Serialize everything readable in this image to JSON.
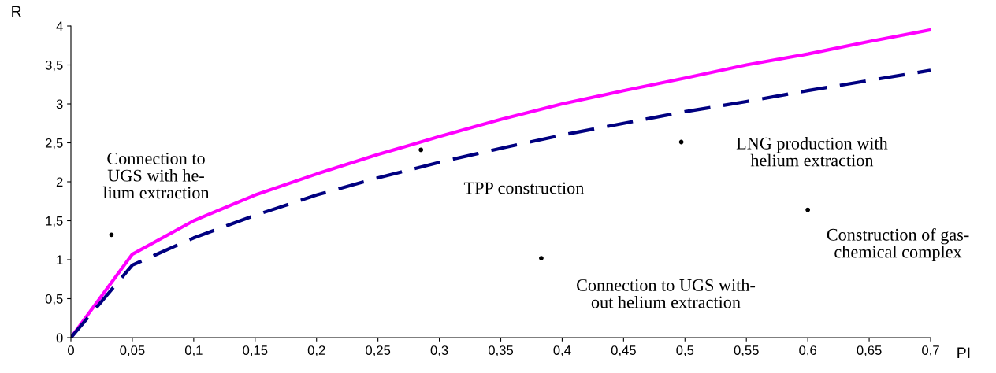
{
  "chart_data": {
    "type": "line",
    "xlabel": "PI",
    "ylabel": "R",
    "xlim": [
      0,
      0.7
    ],
    "ylim": [
      0,
      4
    ],
    "xticks": [
      0,
      {
        "value": 0.05,
        "label": "0,05"
      },
      {
        "value": 0.1,
        "label": "0,1"
      },
      {
        "value": 0.15,
        "label": "0,15"
      },
      {
        "value": 0.2,
        "label": "0,2"
      },
      {
        "value": 0.25,
        "label": "0,25"
      },
      {
        "value": 0.3,
        "label": "0,3"
      },
      {
        "value": 0.35,
        "label": "0,35"
      },
      {
        "value": 0.4,
        "label": "0,4"
      },
      {
        "value": 0.45,
        "label": "0,45"
      },
      {
        "value": 0.5,
        "label": "0,5"
      },
      {
        "value": 0.55,
        "label": "0,55"
      },
      {
        "value": 0.6,
        "label": "0,6"
      },
      {
        "value": 0.65,
        "label": "0,65"
      },
      {
        "value": 0.7,
        "label": "0,7"
      }
    ],
    "yticks": [
      0,
      {
        "value": 0.5,
        "label": "0,5"
      },
      1,
      {
        "value": 1.5,
        "label": "1,5"
      },
      2,
      {
        "value": 2.5,
        "label": "2,5"
      },
      3,
      {
        "value": 3.5,
        "label": "3,5"
      },
      4
    ],
    "grid": false,
    "legend": false,
    "series": [
      {
        "color": "#ff00ff",
        "line_style": "solid",
        "x": [
          0,
          0.05,
          0.1,
          0.15,
          0.2,
          0.25,
          0.3,
          0.35,
          0.4,
          0.45,
          0.5,
          0.55,
          0.6,
          0.65,
          0.7
        ],
        "values": [
          0,
          1.07,
          1.5,
          1.83,
          2.1,
          2.35,
          2.58,
          2.8,
          3.0,
          3.17,
          3.33,
          3.5,
          3.64,
          3.8,
          3.95
        ]
      },
      {
        "color": "#000080",
        "line_style": "dashed",
        "x": [
          0,
          0.05,
          0.1,
          0.15,
          0.2,
          0.25,
          0.3,
          0.35,
          0.4,
          0.45,
          0.5,
          0.55,
          0.6,
          0.65,
          0.7
        ],
        "values": [
          0,
          0.93,
          1.28,
          1.57,
          1.83,
          2.05,
          2.25,
          2.43,
          2.6,
          2.75,
          2.9,
          3.03,
          3.17,
          3.3,
          3.43
        ]
      },
      {
        "type": "scatter",
        "color": "#000000",
        "x": [
          0.033,
          0.285,
          0.383,
          0.497,
          0.6
        ],
        "values": [
          1.32,
          2.41,
          1.02,
          2.51,
          1.64
        ]
      }
    ],
    "annotations": [
      "Connection to\nUGS with he-\nlium extraction",
      "TPP construction",
      "Connection to UGS with-\nout helium extraction",
      "LNG production with\nhelium extraction",
      "Construction of gas-\nchemical complex"
    ]
  }
}
